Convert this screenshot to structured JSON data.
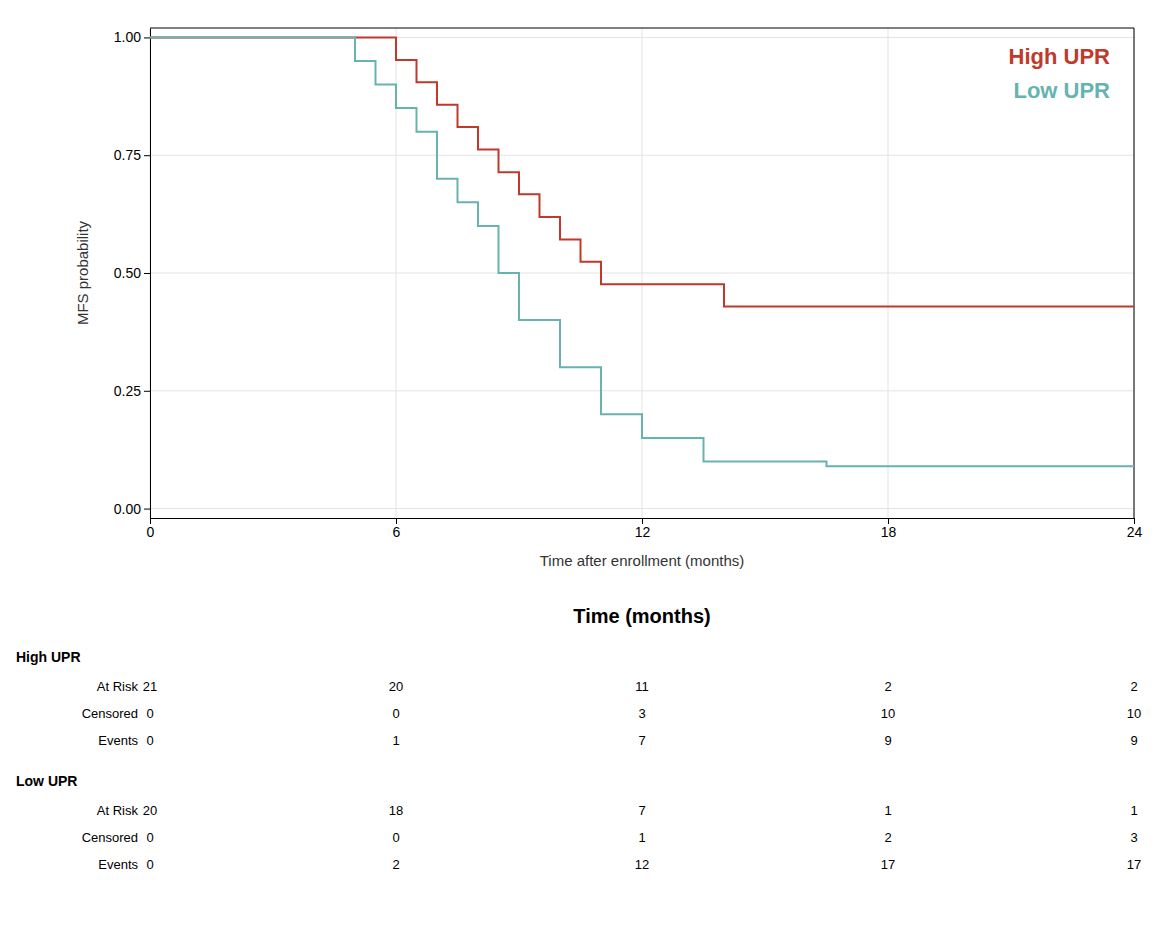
{
  "chart_data": [
    {
      "type": "line",
      "line_style": "step",
      "xlabel": "Time after enrollment (months)",
      "ylabel": "MFS probability",
      "xlim": [
        0,
        24
      ],
      "ylim": [
        -0.02,
        1.02
      ],
      "xticks": [
        0,
        6,
        12,
        18,
        24
      ],
      "yticks": [
        {
          "value": 0.0,
          "label": "0.00"
        },
        {
          "value": 0.25,
          "label": "0.25"
        },
        {
          "value": 0.5,
          "label": "0.50"
        },
        {
          "value": 0.75,
          "label": "0.75"
        },
        {
          "value": 1.0,
          "label": "1.00"
        }
      ],
      "grid": true,
      "legend": "upper right",
      "series": [
        {
          "name": "High UPR",
          "color": "#c0392b",
          "x": [
            0,
            5.0,
            6.0,
            6.5,
            7.0,
            7.5,
            8.0,
            8.5,
            9.0,
            9.5,
            10.0,
            10.5,
            11.0,
            14.0,
            16.5,
            24.0
          ],
          "values": [
            1.0,
            1.0,
            0.952,
            0.905,
            0.857,
            0.81,
            0.762,
            0.714,
            0.667,
            0.619,
            0.571,
            0.524,
            0.476,
            0.429,
            0.429,
            0.429
          ]
        },
        {
          "name": "Low UPR",
          "color": "#66b3b0",
          "x": [
            0,
            4.0,
            5.0,
            5.5,
            6.0,
            6.5,
            7.0,
            7.5,
            8.0,
            8.5,
            9.0,
            10.0,
            11.0,
            12.0,
            13.5,
            16.5,
            24.0
          ],
          "values": [
            1.0,
            1.0,
            0.95,
            0.9,
            0.85,
            0.8,
            0.7,
            0.65,
            0.6,
            0.5,
            0.4,
            0.3,
            0.2,
            0.15,
            0.1,
            0.09,
            0.09
          ]
        }
      ]
    },
    {
      "type": "table",
      "title": "Time (months)",
      "x": [
        0,
        6,
        12,
        18,
        24
      ],
      "groups": [
        {
          "name": "High UPR",
          "rows": [
            {
              "name": "At Risk",
              "values": [
                21,
                20,
                11,
                2,
                2
              ]
            },
            {
              "name": "Censored",
              "values": [
                0,
                0,
                3,
                10,
                10
              ]
            },
            {
              "name": "Events",
              "values": [
                0,
                1,
                7,
                9,
                9
              ]
            }
          ]
        },
        {
          "name": "Low UPR",
          "rows": [
            {
              "name": "At Risk",
              "values": [
                20,
                18,
                7,
                1,
                1
              ]
            },
            {
              "name": "Censored",
              "values": [
                0,
                0,
                1,
                2,
                3
              ]
            },
            {
              "name": "Events",
              "values": [
                0,
                2,
                12,
                17,
                17
              ]
            }
          ]
        }
      ]
    }
  ]
}
